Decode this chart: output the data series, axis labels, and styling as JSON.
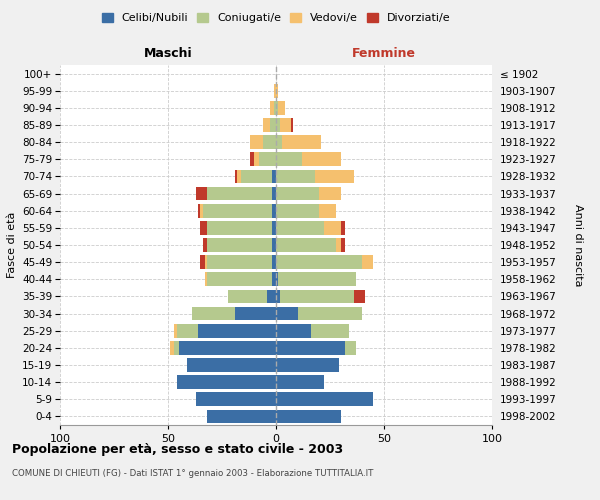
{
  "age_groups": [
    "0-4",
    "5-9",
    "10-14",
    "15-19",
    "20-24",
    "25-29",
    "30-34",
    "35-39",
    "40-44",
    "45-49",
    "50-54",
    "55-59",
    "60-64",
    "65-69",
    "70-74",
    "75-79",
    "80-84",
    "85-89",
    "90-94",
    "95-99",
    "100+"
  ],
  "birth_years": [
    "1998-2002",
    "1993-1997",
    "1988-1992",
    "1983-1987",
    "1978-1982",
    "1973-1977",
    "1968-1972",
    "1963-1967",
    "1958-1962",
    "1953-1957",
    "1948-1952",
    "1943-1947",
    "1938-1942",
    "1933-1937",
    "1928-1932",
    "1923-1927",
    "1918-1922",
    "1913-1917",
    "1908-1912",
    "1903-1907",
    "≤ 1902"
  ],
  "colors": {
    "celibi": "#3b6ea5",
    "coniugati": "#b5c98e",
    "vedovi": "#f5c06e",
    "divorziati": "#c0392b"
  },
  "maschi": {
    "celibi": [
      32,
      37,
      46,
      41,
      45,
      36,
      19,
      4,
      2,
      2,
      2,
      2,
      2,
      2,
      2,
      0,
      0,
      0,
      0,
      0,
      0
    ],
    "coniugati": [
      0,
      0,
      0,
      0,
      2,
      10,
      20,
      18,
      30,
      30,
      30,
      30,
      32,
      30,
      14,
      8,
      6,
      3,
      1,
      0,
      0
    ],
    "vedovi": [
      0,
      0,
      0,
      0,
      2,
      1,
      0,
      0,
      1,
      1,
      0,
      0,
      1,
      0,
      2,
      2,
      6,
      3,
      2,
      1,
      0
    ],
    "divorziati": [
      0,
      0,
      0,
      0,
      0,
      0,
      0,
      0,
      0,
      2,
      2,
      3,
      1,
      5,
      1,
      2,
      0,
      0,
      0,
      0,
      0
    ]
  },
  "femmine": {
    "celibi": [
      30,
      45,
      22,
      29,
      32,
      16,
      10,
      2,
      1,
      0,
      0,
      0,
      0,
      0,
      0,
      0,
      0,
      0,
      0,
      0,
      0
    ],
    "coniugati": [
      0,
      0,
      0,
      0,
      5,
      18,
      30,
      34,
      36,
      40,
      28,
      22,
      20,
      20,
      18,
      12,
      3,
      2,
      1,
      0,
      0
    ],
    "vedovi": [
      0,
      0,
      0,
      0,
      0,
      0,
      0,
      0,
      0,
      5,
      2,
      8,
      8,
      10,
      18,
      18,
      18,
      5,
      3,
      1,
      0
    ],
    "divorziati": [
      0,
      0,
      0,
      0,
      0,
      0,
      0,
      5,
      0,
      0,
      2,
      2,
      0,
      0,
      0,
      0,
      0,
      1,
      0,
      0,
      0
    ]
  },
  "xlim": 100,
  "xticks": [
    -100,
    -50,
    0,
    50,
    100
  ],
  "xticklabels": [
    "100",
    "50",
    "0",
    "50",
    "100"
  ],
  "title": "Popolazione per età, sesso e stato civile - 2003",
  "subtitle": "COMUNE DI CHIEUTI (FG) - Dati ISTAT 1° gennaio 2003 - Elaborazione TUTTITALIA.IT",
  "ylabel_left": "Fasce di età",
  "ylabel_right": "Anni di nascita",
  "label_maschi": "Maschi",
  "label_femmine": "Femmine",
  "legend_labels": [
    "Celibi/Nubili",
    "Coniugati/e",
    "Vedovi/e",
    "Divorziati/e"
  ],
  "bg_color": "#f0f0f0",
  "plot_bg": "#ffffff"
}
